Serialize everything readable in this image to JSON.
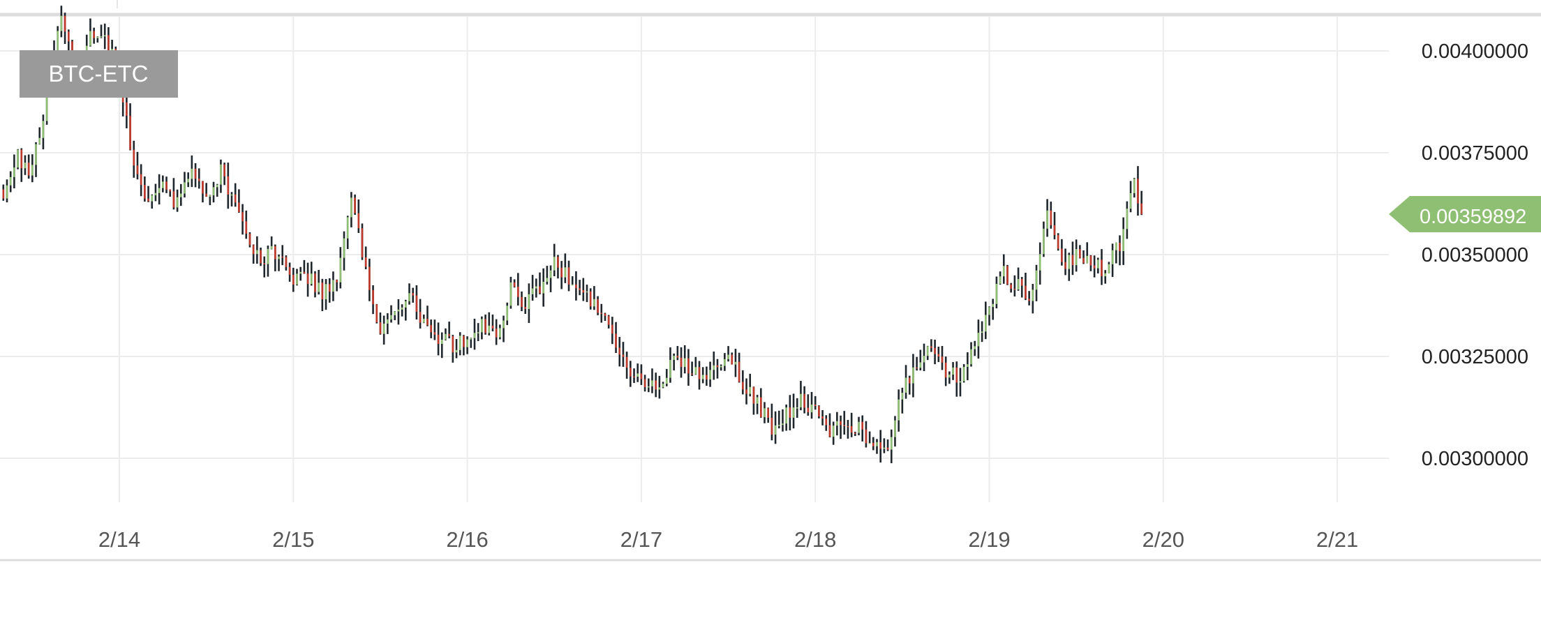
{
  "chart_data": {
    "type": "candlestick",
    "title": "BTC-ETC",
    "xlabel": "",
    "ylabel": "",
    "x_ticks": [
      "2/14",
      "2/15",
      "2/16",
      "2/17",
      "2/18",
      "2/19",
      "2/20",
      "2/21"
    ],
    "y_ticks": [
      "0.00300000",
      "0.00325000",
      "0.00350000",
      "0.00375000",
      "0.00400000"
    ],
    "xlim": [
      "2/13 07:00",
      "2/21 23:00"
    ],
    "ylim": [
      0.002885,
      0.004128
    ],
    "grid": true,
    "last_price": "0.00359892",
    "colors": {
      "up": "#8fbf73",
      "down": "#c0392b",
      "neutral": "#1f262c",
      "last_price_tag": "#8fbf73",
      "grid": "#ececec",
      "axis_text": "#555555",
      "title_box": "#9a9a9a"
    },
    "price_path": [
      [
        "2/13 08:00",
        0.00366
      ],
      [
        "2/13 10:00",
        0.00374
      ],
      [
        "2/13 12:00",
        0.0037
      ],
      [
        "2/13 14:00",
        0.0039
      ],
      [
        "2/13 16:00",
        0.0041
      ],
      [
        "2/13 18:00",
        0.00393
      ],
      [
        "2/13 20:00",
        0.00405
      ],
      [
        "2/13 22:00",
        0.00402
      ],
      [
        "2/14 00:00",
        0.00395
      ],
      [
        "2/14 02:00",
        0.00372
      ],
      [
        "2/14 04:00",
        0.00363
      ],
      [
        "2/14 06:00",
        0.00368
      ],
      [
        "2/14 08:00",
        0.00362
      ],
      [
        "2/14 10:00",
        0.0037
      ],
      [
        "2/14 12:00",
        0.00364
      ],
      [
        "2/14 14:00",
        0.0037
      ],
      [
        "2/14 16:00",
        0.00363
      ],
      [
        "2/14 18:00",
        0.00352
      ],
      [
        "2/14 20:00",
        0.00349
      ],
      [
        "2/14 22:00",
        0.00351
      ],
      [
        "2/15 00:00",
        0.00343
      ],
      [
        "2/15 02:00",
        0.00345
      ],
      [
        "2/15 04:00",
        0.0034
      ],
      [
        "2/15 06:00",
        0.00345
      ],
      [
        "2/15 08:00",
        0.00362
      ],
      [
        "2/15 10:00",
        0.00348
      ],
      [
        "2/15 12:00",
        0.0033
      ],
      [
        "2/15 14:00",
        0.00334
      ],
      [
        "2/15 16:00",
        0.0034
      ],
      [
        "2/15 18:00",
        0.00333
      ],
      [
        "2/15 20:00",
        0.0033
      ],
      [
        "2/15 22:00",
        0.00328
      ],
      [
        "2/16 00:00",
        0.00329
      ],
      [
        "2/16 02:00",
        0.00332
      ],
      [
        "2/16 04:00",
        0.0033
      ],
      [
        "2/16 06:00",
        0.00342
      ],
      [
        "2/16 08:00",
        0.00338
      ],
      [
        "2/16 10:00",
        0.00341
      ],
      [
        "2/16 12:00",
        0.0035
      ],
      [
        "2/16 14:00",
        0.00343
      ],
      [
        "2/16 16:00",
        0.00341
      ],
      [
        "2/16 18:00",
        0.00336
      ],
      [
        "2/16 20:00",
        0.00331
      ],
      [
        "2/16 22:00",
        0.00323
      ],
      [
        "2/17 00:00",
        0.0032
      ],
      [
        "2/17 02:00",
        0.00317
      ],
      [
        "2/17 04:00",
        0.00323
      ],
      [
        "2/17 06:00",
        0.00324
      ],
      [
        "2/17 08:00",
        0.0032
      ],
      [
        "2/17 10:00",
        0.00322
      ],
      [
        "2/17 12:00",
        0.00326
      ],
      [
        "2/17 14:00",
        0.00318
      ],
      [
        "2/17 16:00",
        0.00313
      ],
      [
        "2/17 18:00",
        0.00308
      ],
      [
        "2/17 20:00",
        0.00311
      ],
      [
        "2/17 22:00",
        0.00314
      ],
      [
        "2/18 00:00",
        0.00312
      ],
      [
        "2/18 02:00",
        0.00307
      ],
      [
        "2/18 04:00",
        0.00309
      ],
      [
        "2/18 06:00",
        0.00307
      ],
      [
        "2/18 08:00",
        0.00304
      ],
      [
        "2/18 10:00",
        0.00303
      ],
      [
        "2/18 12:00",
        0.00317
      ],
      [
        "2/18 14:00",
        0.00323
      ],
      [
        "2/18 16:00",
        0.00328
      ],
      [
        "2/18 18:00",
        0.0032
      ],
      [
        "2/18 20:00",
        0.00321
      ],
      [
        "2/18 22:00",
        0.00327
      ],
      [
        "2/19 00:00",
        0.00338
      ],
      [
        "2/19 02:00",
        0.00345
      ],
      [
        "2/19 04:00",
        0.00342
      ],
      [
        "2/19 06:00",
        0.0034
      ],
      [
        "2/19 08:00",
        0.0036
      ],
      [
        "2/19 10:00",
        0.00347
      ],
      [
        "2/19 12:00",
        0.0035
      ],
      [
        "2/19 14:00",
        0.00348
      ],
      [
        "2/19 16:00",
        0.00345
      ],
      [
        "2/19 18:00",
        0.00353
      ],
      [
        "2/19 20:00",
        0.00368
      ],
      [
        "2/19 21:00",
        0.003599
      ]
    ]
  }
}
